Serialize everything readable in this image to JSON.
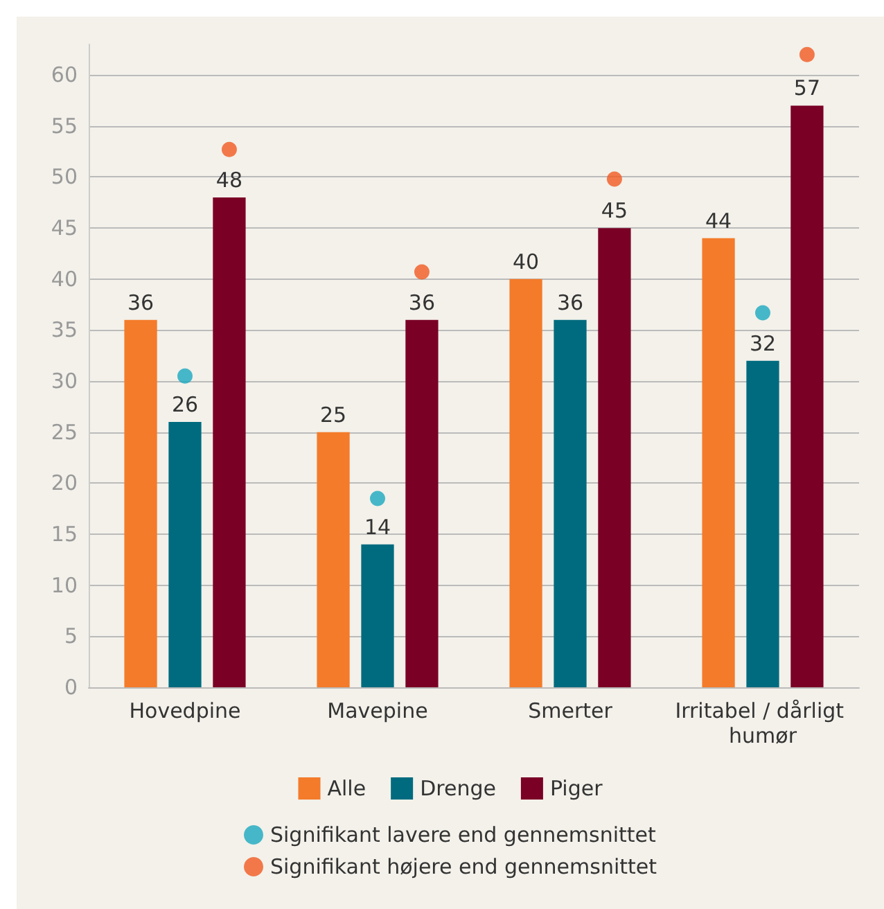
{
  "chart_data": {
    "type": "bar",
    "categories": [
      "Hovedpine",
      "Mavepine",
      "Smerter",
      "Irritabel / dårligt humør"
    ],
    "series": [
      {
        "name": "Alle",
        "color": "#f47b2a",
        "values": [
          36,
          25,
          40,
          44
        ],
        "value_labels": [
          "36",
          "25",
          "40",
          "44"
        ]
      },
      {
        "name": "Drenge",
        "color": "#006b7f",
        "values": [
          26,
          14,
          36,
          32
        ],
        "value_labels": [
          "26",
          "14",
          "36",
          "32"
        ]
      },
      {
        "name": "Piger",
        "color": "#7a0026",
        "values": [
          48,
          36,
          45,
          57
        ],
        "value_labels": [
          "48",
          "36",
          "45",
          "57"
        ]
      },
      {
        "name": "Signifikant lavere end gennemsnittet",
        "type": "scatter",
        "color": "#1aa9bf",
        "x": [
          "Hovedpine",
          "Mavepine",
          "Irritabel / dårligt humør"
        ],
        "values": [
          30.5,
          18.5,
          36.7
        ]
      },
      {
        "name": "Signifikant højere end gennemsnittet",
        "type": "scatter",
        "color": "#f15a22",
        "x": [
          "Hovedpine",
          "Mavepine",
          "Smerter",
          "Irritabel / dårligt humør"
        ],
        "values": [
          52.7,
          40.7,
          49.8,
          62
        ]
      }
    ],
    "ylim": [
      0,
      63
    ],
    "yticks": [
      0,
      5,
      10,
      15,
      20,
      25,
      30,
      35,
      40,
      45,
      50,
      55,
      60
    ],
    "grid": "y",
    "legend": "bottom",
    "marker": "circle"
  }
}
